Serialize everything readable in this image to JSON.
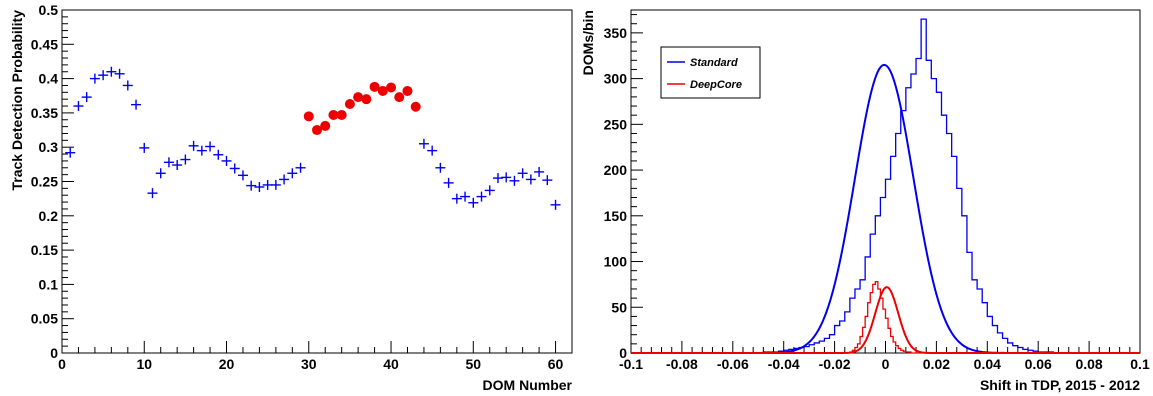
{
  "colors": {
    "standard": "#0000ee",
    "deepcore": "#ee0000",
    "axis": "#000000"
  },
  "chart_data": [
    {
      "type": "scatter",
      "xlabel": "DOM Number",
      "ylabel": "Track Detection Probability",
      "xlim": [
        0,
        62
      ],
      "ylim": [
        0,
        0.5
      ],
      "xticks": [
        "0",
        "10",
        "20",
        "30",
        "40",
        "50",
        "60"
      ],
      "yticks": [
        "0",
        "0.05",
        "0.1",
        "0.15",
        "0.2",
        "0.25",
        "0.3",
        "0.35",
        "0.4",
        "0.45",
        "0.5"
      ],
      "grid": false,
      "series": [
        {
          "marker": "cross",
          "color": "#0000ee",
          "x": [
            1,
            2,
            3,
            4,
            5,
            6,
            7,
            8,
            9,
            10,
            11,
            12,
            13,
            14,
            15,
            16,
            17,
            18,
            19,
            20,
            21,
            22,
            23,
            24,
            25,
            26,
            27,
            28,
            29,
            44,
            45,
            46,
            47,
            48,
            49,
            50,
            51,
            52,
            53,
            54,
            55,
            56,
            57,
            58,
            59,
            60
          ],
          "y": [
            0.292,
            0.36,
            0.373,
            0.4,
            0.405,
            0.41,
            0.407,
            0.39,
            0.362,
            0.299,
            0.233,
            0.262,
            0.278,
            0.274,
            0.282,
            0.302,
            0.295,
            0.301,
            0.289,
            0.28,
            0.269,
            0.259,
            0.244,
            0.242,
            0.245,
            0.245,
            0.253,
            0.262,
            0.27,
            0.305,
            0.295,
            0.27,
            0.248,
            0.225,
            0.228,
            0.219,
            0.228,
            0.237,
            0.255,
            0.256,
            0.251,
            0.262,
            0.253,
            0.264,
            0.252,
            0.216
          ]
        },
        {
          "marker": "circle",
          "color": "#ee0000",
          "x": [
            30,
            31,
            32,
            33,
            34,
            35,
            36,
            37,
            38,
            39,
            40,
            41,
            42,
            43
          ],
          "y": [
            0.345,
            0.325,
            0.331,
            0.347,
            0.347,
            0.363,
            0.373,
            0.37,
            0.388,
            0.382,
            0.387,
            0.373,
            0.382,
            0.359
          ]
        }
      ]
    },
    {
      "type": "line",
      "xlabel": "Shift in TDP, 2015 - 2012",
      "ylabel": "DOMs/bin",
      "xlim": [
        -0.1,
        0.1
      ],
      "ylim": [
        0,
        375
      ],
      "xticks": [
        "-0.1",
        "-0.08",
        "-0.06",
        "-0.04",
        "-0.02",
        "0",
        "0.02",
        "0.04",
        "0.06",
        "0.08",
        "0.1"
      ],
      "yticks": [
        "0",
        "50",
        "100",
        "150",
        "200",
        "250",
        "300",
        "350"
      ],
      "grid": false,
      "legend": "top-left",
      "series": [
        {
          "name": "Standard",
          "color": "#0000ee",
          "style": "histogram",
          "bin_width": 0.002,
          "bin_edges_start": -0.05,
          "counts": [
            0,
            1,
            1,
            1,
            2,
            3,
            4,
            5,
            6,
            7,
            9,
            11,
            13,
            16,
            20,
            30,
            35,
            45,
            60,
            70,
            80,
            105,
            130,
            150,
            170,
            190,
            215,
            240,
            265,
            290,
            305,
            322,
            365,
            320,
            300,
            285,
            260,
            240,
            215,
            180,
            150,
            110,
            80,
            70,
            55,
            40,
            30,
            22,
            16,
            11,
            8,
            6,
            4,
            3,
            2,
            1,
            1,
            1,
            0,
            0
          ]
        },
        {
          "name": "Standard",
          "color": "#0000ee",
          "style": "gaussian-fit",
          "amplitude": 315,
          "mean": -0.0005,
          "sigma": 0.0115
        },
        {
          "name": "DeepCore",
          "color": "#ee0000",
          "style": "histogram",
          "bin_width": 0.001,
          "bin_edges_start": -0.015,
          "counts": [
            0,
            1,
            3,
            6,
            10,
            18,
            28,
            40,
            55,
            66,
            75,
            78,
            70,
            60,
            48,
            38,
            27,
            18,
            12,
            8,
            5,
            3,
            2,
            1,
            1,
            0,
            0,
            0,
            0,
            0,
            0
          ]
        },
        {
          "name": "DeepCore",
          "color": "#ee0000",
          "style": "gaussian-fit",
          "amplitude": 72,
          "mean": 0.0005,
          "sigma": 0.0045
        }
      ],
      "legend_entries": [
        "Standard",
        "DeepCore"
      ]
    }
  ]
}
